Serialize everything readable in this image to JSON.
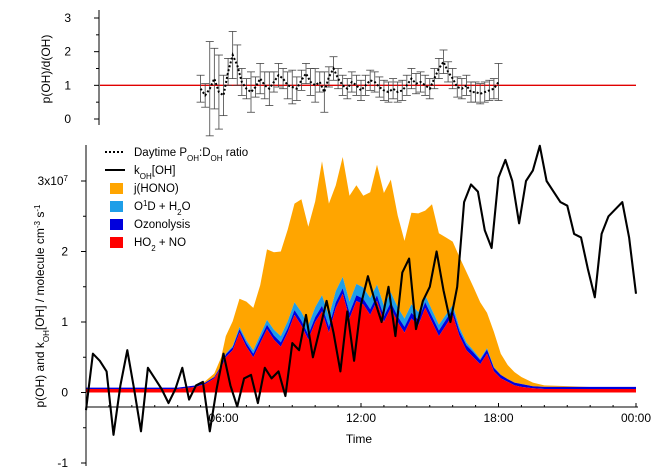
{
  "chart_data": [
    {
      "type": "line",
      "ylabel": "p(OH)/d(OH)",
      "ylim": [
        -0.3,
        3
      ],
      "yticks": [
        "0",
        "1",
        "2",
        "3"
      ],
      "reference_line": {
        "y": 1,
        "color": "#e00000"
      },
      "series": [
        {
          "name": "Daytime P_OH:D_OH ratio",
          "style": "dotted",
          "color": "#000000",
          "x": [
            5.0,
            5.2,
            5.4,
            5.6,
            5.8,
            6.0,
            6.2,
            6.4,
            6.6,
            6.8,
            7.0,
            7.2,
            7.4,
            7.6,
            7.8,
            8.0,
            8.2,
            8.4,
            8.6,
            8.8,
            9.0,
            9.2,
            9.4,
            9.6,
            9.8,
            10.0,
            10.2,
            10.4,
            10.6,
            10.8,
            11.0,
            11.2,
            11.4,
            11.6,
            11.8,
            12.0,
            12.2,
            12.4,
            12.6,
            12.8,
            13.0,
            13.2,
            13.4,
            13.6,
            13.8,
            14.0,
            14.2,
            14.4,
            14.6,
            14.8,
            15.0,
            15.2,
            15.4,
            15.6,
            15.8,
            16.0,
            16.2,
            16.4,
            16.6,
            16.8,
            17.0,
            17.2,
            17.4,
            17.6,
            17.8,
            18.0
          ],
          "values": [
            0.9,
            0.7,
            0.9,
            1.2,
            0.8,
            0.7,
            1.4,
            1.9,
            1.6,
            1.1,
            0.9,
            0.8,
            0.95,
            1.2,
            1.0,
            0.9,
            1.1,
            1.3,
            1.2,
            1.0,
            0.95,
            0.9,
            1.15,
            1.35,
            1.1,
            1.0,
            1.1,
            0.8,
            1.25,
            1.5,
            1.2,
            1.0,
            0.9,
            1.1,
            1.0,
            0.85,
            1.0,
            1.15,
            1.1,
            0.95,
            0.85,
            0.8,
            0.9,
            0.8,
            0.85,
            1.0,
            1.2,
            1.05,
            1.1,
            1.0,
            0.9,
            1.2,
            1.5,
            1.7,
            1.4,
            1.2,
            0.95,
            0.9,
            1.0,
            0.8,
            0.8,
            0.75,
            0.8,
            0.85,
            0.9,
            1.1
          ],
          "errors": [
            0.4,
            0.35,
            1.4,
            0.9,
            1.1,
            0.6,
            0.4,
            0.7,
            0.6,
            0.4,
            0.3,
            0.6,
            0.3,
            0.45,
            0.4,
            0.5,
            0.3,
            0.35,
            0.3,
            0.4,
            0.5,
            0.35,
            0.3,
            0.3,
            0.4,
            0.5,
            0.3,
            0.6,
            0.3,
            0.35,
            0.3,
            0.3,
            0.3,
            0.3,
            0.3,
            0.3,
            0.3,
            0.3,
            0.3,
            0.3,
            0.3,
            0.3,
            0.3,
            0.3,
            0.3,
            0.3,
            0.3,
            0.3,
            0.3,
            0.3,
            0.3,
            0.3,
            0.3,
            0.35,
            0.3,
            0.3,
            0.3,
            0.3,
            0.3,
            0.3,
            0.3,
            0.3,
            0.3,
            0.3,
            0.3,
            0.55
          ]
        }
      ]
    },
    {
      "type": "area",
      "xlabel": "Time",
      "ylabel_parts": [
        "p(OH) and k",
        "OH",
        "[OH] / molecule cm",
        "-3",
        " s",
        "-1"
      ],
      "xlim": [
        0,
        24
      ],
      "ylim": [
        -1,
        3.5
      ],
      "xticks": [
        {
          "x": 6,
          "label": "06:00"
        },
        {
          "x": 12,
          "label": "12:00"
        },
        {
          "x": 18,
          "label": "18:00"
        },
        {
          "x": 24,
          "label": "00:00"
        }
      ],
      "yticks": [
        {
          "y": -1,
          "label": "-1"
        },
        {
          "y": 0,
          "label": "0"
        },
        {
          "y": 1,
          "label": "1"
        },
        {
          "y": 2,
          "label": "2"
        },
        {
          "y": 3,
          "label": "3x10",
          "sup": "7"
        }
      ],
      "legend_position": "top-left",
      "legend": [
        {
          "key": "ratio",
          "style": "dotted",
          "color": "#000000",
          "label_parts": [
            "Daytime P",
            "OH",
            ":D",
            "OH",
            " ratio"
          ]
        },
        {
          "key": "koh",
          "style": "line",
          "color": "#000000",
          "label_parts": [
            "k",
            "OH",
            "[OH]"
          ]
        },
        {
          "key": "hono",
          "style": "swatch",
          "color": "#ffa500",
          "label_parts": [
            "j(HONO)"
          ]
        },
        {
          "key": "o1d",
          "style": "swatch",
          "color": "#1e9ee8",
          "label_parts": [
            "O",
            "1",
            "D + H",
            "2",
            "O"
          ]
        },
        {
          "key": "ozo",
          "style": "swatch",
          "color": "#0000dd",
          "label_parts": [
            "Ozonolysis"
          ]
        },
        {
          "key": "ho2",
          "style": "swatch",
          "color": "#ff0000",
          "label_parts": [
            "HO",
            "2",
            " + NO"
          ]
        }
      ],
      "stack_x": [
        0,
        2,
        4,
        4.8,
        5.2,
        5.6,
        5.9,
        6.1,
        6.4,
        6.7,
        7.0,
        7.3,
        7.6,
        7.9,
        8.2,
        8.5,
        8.8,
        9.1,
        9.4,
        9.7,
        10.0,
        10.3,
        10.6,
        10.9,
        11.2,
        11.5,
        11.8,
        12.1,
        12.4,
        12.7,
        13.0,
        13.3,
        13.6,
        13.9,
        14.2,
        14.5,
        14.8,
        15.1,
        15.4,
        15.7,
        16.0,
        16.3,
        16.6,
        16.9,
        17.2,
        17.5,
        17.8,
        18.1,
        18.4,
        18.7,
        19.0,
        19.5,
        20,
        22,
        24
      ],
      "ho2_no": [
        0.05,
        0.05,
        0.05,
        0.08,
        0.12,
        0.2,
        0.35,
        0.5,
        0.6,
        0.85,
        0.65,
        0.5,
        0.7,
        0.9,
        0.75,
        0.65,
        0.85,
        1.1,
        0.95,
        0.75,
        1.0,
        1.15,
        0.85,
        1.2,
        1.4,
        1.05,
        1.3,
        1.25,
        1.1,
        1.3,
        1.0,
        1.2,
        1.0,
        0.85,
        1.05,
        0.95,
        1.2,
        1.0,
        0.8,
        0.95,
        1.1,
        0.8,
        0.6,
        0.5,
        0.4,
        0.55,
        0.3,
        0.2,
        0.15,
        0.1,
        0.08,
        0.06,
        0.05,
        0.05,
        0.05
      ],
      "ozonolysis": [
        0.02,
        0.02,
        0.02,
        0.02,
        0.02,
        0.02,
        0.03,
        0.04,
        0.04,
        0.05,
        0.05,
        0.05,
        0.06,
        0.06,
        0.06,
        0.06,
        0.06,
        0.07,
        0.07,
        0.07,
        0.07,
        0.08,
        0.08,
        0.08,
        0.08,
        0.08,
        0.08,
        0.08,
        0.08,
        0.08,
        0.08,
        0.08,
        0.08,
        0.08,
        0.08,
        0.08,
        0.08,
        0.08,
        0.08,
        0.08,
        0.08,
        0.07,
        0.07,
        0.07,
        0.06,
        0.06,
        0.05,
        0.05,
        0.04,
        0.04,
        0.04,
        0.03,
        0.03,
        0.03,
        0.03
      ],
      "o1d_h2o": [
        0.0,
        0.0,
        0.0,
        0.0,
        0.0,
        0.0,
        0.0,
        0.01,
        0.02,
        0.03,
        0.04,
        0.05,
        0.06,
        0.07,
        0.08,
        0.09,
        0.1,
        0.11,
        0.12,
        0.13,
        0.14,
        0.15,
        0.15,
        0.16,
        0.16,
        0.16,
        0.16,
        0.16,
        0.16,
        0.15,
        0.15,
        0.14,
        0.13,
        0.12,
        0.12,
        0.11,
        0.1,
        0.09,
        0.08,
        0.07,
        0.06,
        0.05,
        0.04,
        0.03,
        0.02,
        0.02,
        0.01,
        0.0,
        0.0,
        0.0,
        0.0,
        0.0,
        0.0,
        0.0,
        0.0
      ],
      "j_hono": [
        0.0,
        0.0,
        0.0,
        0.0,
        0.02,
        0.05,
        0.12,
        0.25,
        0.35,
        0.4,
        0.55,
        0.6,
        0.7,
        1.0,
        1.1,
        1.2,
        1.3,
        1.4,
        1.6,
        1.4,
        1.5,
        1.9,
        1.6,
        1.5,
        1.7,
        1.5,
        1.4,
        1.3,
        1.5,
        1.7,
        1.6,
        1.6,
        1.3,
        1.1,
        1.3,
        1.4,
        1.2,
        1.5,
        1.3,
        1.1,
        0.9,
        1.0,
        1.0,
        0.9,
        0.8,
        0.5,
        0.5,
        0.3,
        0.2,
        0.15,
        0.1,
        0.05,
        0.02,
        0.0,
        0.0
      ],
      "koh_oh": {
        "x": [
          0.0,
          0.3,
          0.6,
          0.9,
          1.2,
          1.5,
          1.8,
          2.1,
          2.4,
          2.7,
          3.0,
          3.3,
          3.6,
          3.9,
          4.2,
          4.5,
          4.8,
          5.1,
          5.4,
          5.7,
          6.0,
          6.3,
          6.6,
          6.9,
          7.2,
          7.5,
          7.8,
          8.1,
          8.4,
          8.7,
          9.0,
          9.3,
          9.6,
          9.9,
          10.2,
          10.5,
          10.8,
          11.1,
          11.4,
          11.7,
          12.0,
          12.3,
          12.6,
          12.9,
          13.2,
          13.5,
          13.8,
          14.1,
          14.4,
          14.7,
          15.0,
          15.3,
          15.6,
          15.9,
          16.2,
          16.5,
          16.8,
          17.1,
          17.4,
          17.7,
          18.0,
          18.3,
          18.6,
          18.9,
          19.2,
          19.5,
          19.8,
          20.1,
          20.4,
          20.7,
          21.0,
          21.3,
          21.6,
          21.9,
          22.2,
          22.5,
          22.8,
          23.1,
          23.4,
          23.7,
          24.0
        ],
        "values": [
          -0.25,
          0.55,
          0.45,
          0.3,
          -0.6,
          0.1,
          0.6,
          0.05,
          -0.55,
          0.35,
          0.2,
          0.05,
          -0.15,
          0.05,
          0.35,
          -0.1,
          0.1,
          0.15,
          -0.55,
          0.05,
          0.55,
          0.1,
          -0.2,
          0.2,
          0.25,
          -0.15,
          0.35,
          0.2,
          0.3,
          -0.05,
          0.7,
          0.6,
          1.1,
          0.5,
          0.9,
          1.3,
          0.85,
          0.3,
          1.15,
          0.45,
          1.25,
          1.65,
          1.3,
          1.0,
          1.5,
          0.8,
          1.7,
          1.9,
          0.9,
          1.3,
          1.5,
          2.0,
          1.45,
          1.0,
          1.5,
          2.7,
          2.95,
          2.85,
          2.3,
          2.05,
          3.05,
          3.3,
          3.0,
          2.4,
          3.0,
          3.15,
          3.5,
          3.0,
          2.85,
          2.7,
          2.65,
          2.25,
          2.2,
          1.75,
          1.35,
          2.25,
          2.5,
          2.6,
          2.7,
          2.2,
          1.4
        ]
      }
    }
  ]
}
